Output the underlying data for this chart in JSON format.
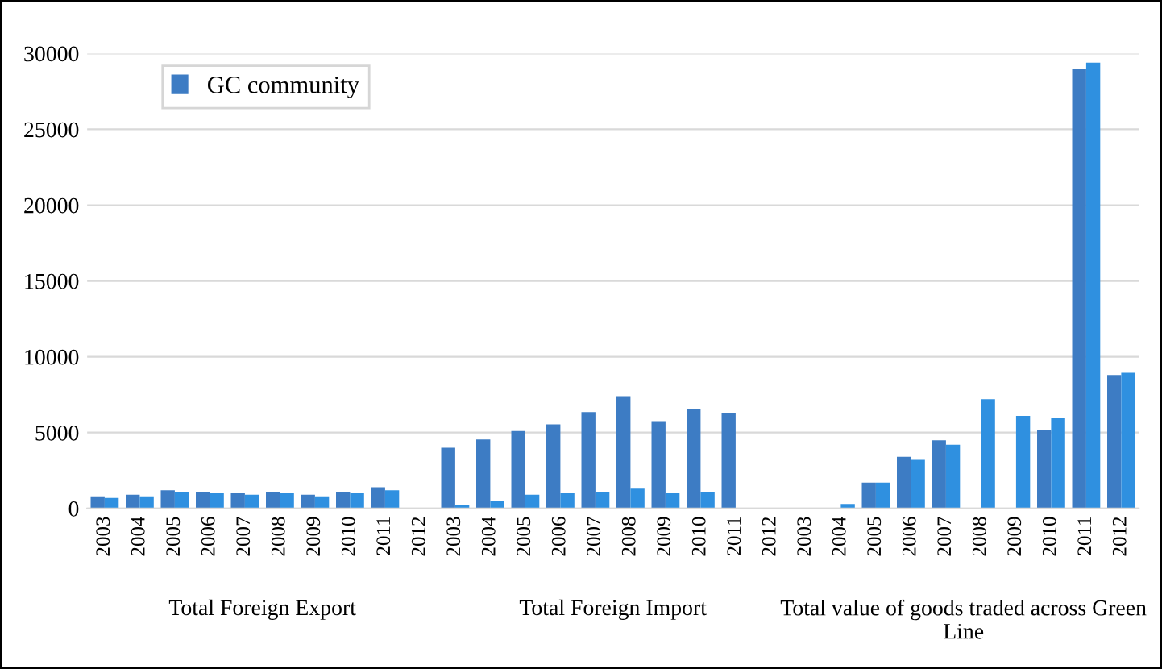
{
  "chart_data": {
    "type": "bar",
    "categories": [
      "2003",
      "2004",
      "2005",
      "2006",
      "2007",
      "2008",
      "2009",
      "2010",
      "2011",
      "2012",
      "2003",
      "2004",
      "2005",
      "2006",
      "2007",
      "2008",
      "2009",
      "2010",
      "2011",
      "2012",
      "2003",
      "2004",
      "2005",
      "2006",
      "2007",
      "2008",
      "2009",
      "2010",
      "2011",
      "2012"
    ],
    "series": [
      {
        "name": "GC community",
        "color": "#3d7cc4",
        "values": [
          800,
          900,
          1200,
          1100,
          1000,
          1100,
          900,
          1100,
          1400,
          null,
          4000,
          4550,
          5100,
          5550,
          6350,
          7400,
          5750,
          6550,
          6300,
          null,
          null,
          null,
          1700,
          3400,
          4500,
          null,
          null,
          5200,
          29000,
          8800
        ]
      },
      {
        "color": "#2f90e0",
        "values": [
          700,
          800,
          1100,
          1000,
          900,
          1000,
          800,
          1000,
          1200,
          null,
          200,
          500,
          900,
          1000,
          1100,
          1300,
          1000,
          1100,
          null,
          null,
          null,
          300,
          1700,
          3200,
          4200,
          7200,
          6100,
          5950,
          29400,
          8950
        ]
      }
    ],
    "ylim": [
      0,
      30000
    ],
    "yticks": [
      0,
      5000,
      10000,
      15000,
      20000,
      25000,
      30000
    ],
    "grid": "y",
    "legend": "top left",
    "annotations": [
      "Total Foreign Export",
      "Total Foreign Import",
      "Total value of goods traded across Green Line"
    ]
  }
}
